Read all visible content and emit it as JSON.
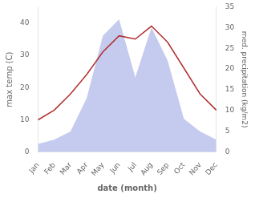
{
  "chart_data": {
    "type": "line",
    "xlabel": "date (month)",
    "ylabel": "max temp (C)",
    "y2label": "med. precipitation (kg/m2)",
    "categories": [
      "Jan",
      "Feb",
      "Mar",
      "Apr",
      "May",
      "Jun",
      "Jul",
      "Aug",
      "Sep",
      "Oct",
      "Nov",
      "Dec"
    ],
    "series": [
      {
        "type": "area",
        "color": "#c5cbee",
        "axis": "y2",
        "values": [
          2,
          3,
          5,
          13,
          28,
          32,
          18,
          30,
          22,
          8,
          5,
          3
        ]
      },
      {
        "type": "line",
        "color": "#b03030",
        "values": [
          10,
          13,
          18,
          24,
          31,
          36,
          35,
          39,
          34,
          26,
          18,
          13
        ]
      }
    ],
    "ylim": [
      0,
      45
    ],
    "yticks": [
      0,
      10,
      20,
      30,
      40
    ],
    "y2lim": [
      0,
      35
    ],
    "y2ticks": [
      0,
      5,
      10,
      15,
      20,
      25,
      30,
      35
    ],
    "grid": false
  }
}
